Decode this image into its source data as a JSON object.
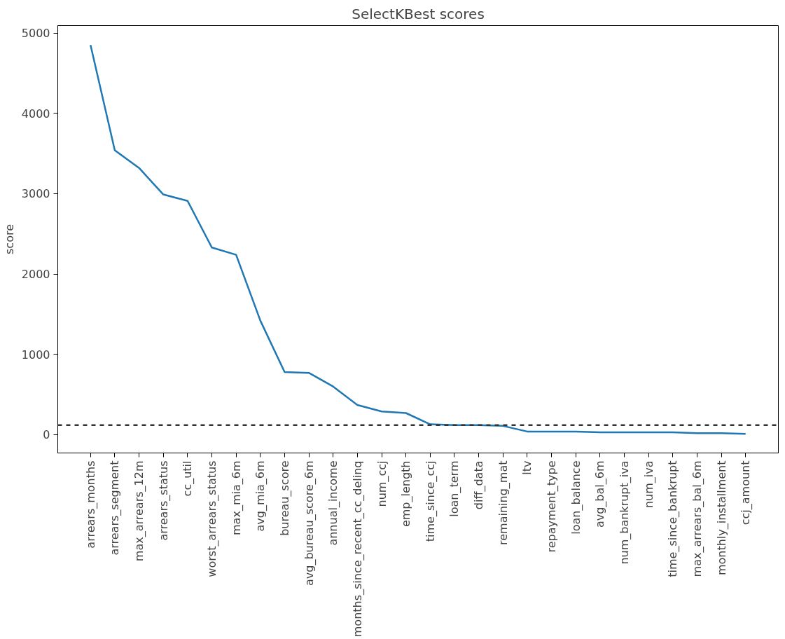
{
  "chart_data": {
    "type": "line",
    "title": "SelectKBest scores",
    "ylabel": "score",
    "categories": [
      "arrears_months",
      "arrears_segment",
      "max_arrears_12m",
      "arrears_status",
      "cc_util",
      "worst_arrears_status",
      "max_mia_6m",
      "avg_mia_6m",
      "bureau_score",
      "avg_bureau_score_6m",
      "annual_income",
      "months_since_recent_cc_delinq",
      "num_ccj",
      "emp_length",
      "time_since_ccj",
      "loan_term",
      "diff_data",
      "remaining_mat",
      "ltv",
      "repayment_type",
      "loan_balance",
      "avg_bal_6m",
      "num_bankrupt_iva",
      "num_iva",
      "time_since_bankrupt",
      "max_arrears_bal_6m",
      "monthly_installment",
      "ccj_amount"
    ],
    "series": [
      {
        "color": "#1f77b4",
        "values": [
          4850,
          3540,
          3320,
          2990,
          2910,
          2330,
          2240,
          1420,
          780,
          770,
          600,
          370,
          290,
          270,
          130,
          120,
          120,
          110,
          40,
          40,
          40,
          30,
          30,
          30,
          30,
          20,
          20,
          10
        ]
      }
    ],
    "ylim": [
      -227,
      5092
    ],
    "yticks": [
      0,
      1000,
      2000,
      3000,
      4000,
      5000
    ],
    "ref_lines": [
      {
        "axis": "y",
        "value": 120,
        "color": "#333333",
        "line_style": "dashed"
      }
    ],
    "grid": false
  }
}
